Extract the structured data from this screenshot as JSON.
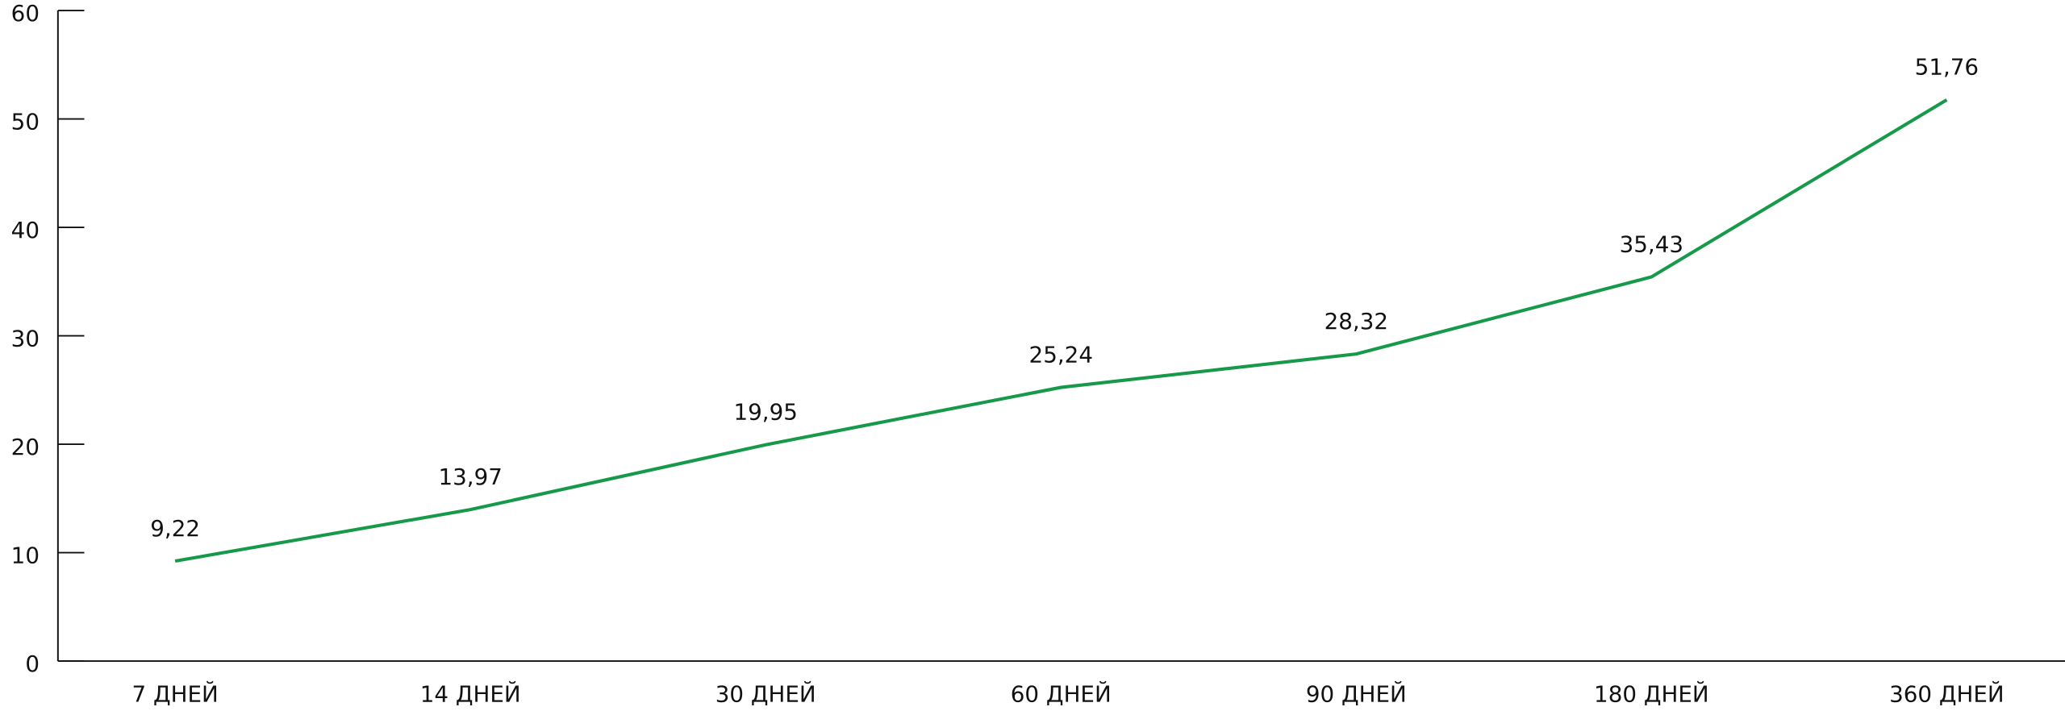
{
  "chart_data": {
    "type": "line",
    "categories": [
      "7 ДНЕЙ",
      "14 ДНЕЙ",
      "30 ДНЕЙ",
      "60 ДНЕЙ",
      "90 ДНЕЙ",
      "180 ДНЕЙ",
      "360 ДНЕЙ"
    ],
    "series": [
      {
        "color": "#17994a",
        "values": [
          9.22,
          13.97,
          19.95,
          25.24,
          28.32,
          35.43,
          51.76
        ],
        "value_labels": [
          "9,22",
          "13,97",
          "19,95",
          "25,24",
          "28,32",
          "35,43",
          "51,76"
        ]
      }
    ],
    "ylim": [
      0,
      60
    ],
    "yticks": [
      0,
      10,
      20,
      30,
      40,
      50,
      60
    ]
  }
}
